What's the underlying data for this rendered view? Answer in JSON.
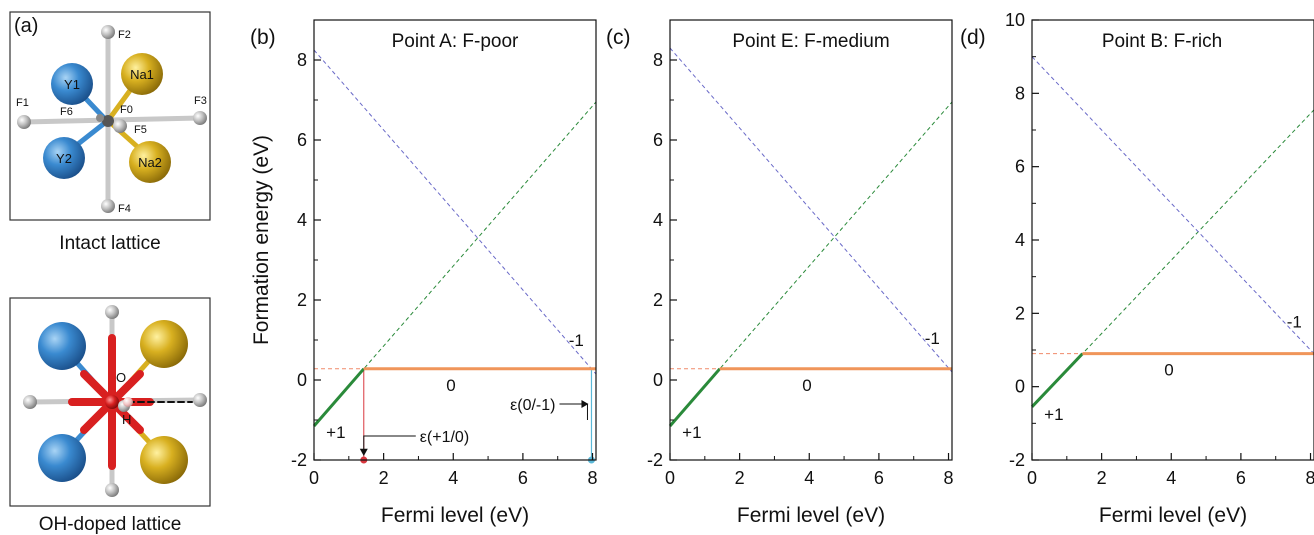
{
  "panel_a": {
    "label": "(a)",
    "intact": {
      "caption": "Intact lattice",
      "atoms": [
        "Y1",
        "Y2",
        "Na1",
        "Na2",
        "F0",
        "F1",
        "F2",
        "F3",
        "F4",
        "F5",
        "F6"
      ]
    },
    "doped": {
      "caption": "OH-doped lattice",
      "atoms": [
        "O",
        "H"
      ]
    }
  },
  "colors": {
    "plus1": "#2a8a3a",
    "zero": "#f0955a",
    "minus1": "#6a6ac8",
    "ref_line": "#f08a6a",
    "eps_plus": "#d9363e",
    "eps_minus": "#5ab8d8",
    "Y": "#3a8ad0",
    "Na": "#d8b020",
    "F": "#b8b8b8",
    "O": "#d82020",
    "H": "#f0c0c0"
  },
  "chart_data": [
    {
      "type": "line",
      "panel": "(b)",
      "title": "Point A: F-poor",
      "xlabel": "Fermi level (eV)",
      "ylabel": "Formation energy (eV)",
      "xlim": [
        0,
        8.1
      ],
      "ylim": [
        -2,
        9
      ],
      "xticks": [
        0,
        2,
        4,
        6,
        8
      ],
      "yticks": [
        -2,
        0,
        2,
        4,
        6,
        8
      ],
      "series": [
        {
          "charge": "+1",
          "label": "+1",
          "x": [
            0,
            8.1
          ],
          "y": [
            -1.15,
            6.95
          ]
        },
        {
          "charge": "0",
          "label": "0",
          "x": [
            0,
            8.1
          ],
          "y": [
            0.28,
            0.28
          ]
        },
        {
          "charge": "-1",
          "label": "-1",
          "x": [
            0,
            8.1
          ],
          "y": [
            8.25,
            0.15
          ]
        }
      ],
      "transitions": [
        {
          "label": "ε(+1/0)",
          "x": 1.43
        },
        {
          "label": "ε(0/-1)",
          "x": 7.97
        }
      ]
    },
    {
      "type": "line",
      "panel": "(c)",
      "title": "Point E: F-medium",
      "xlabel": "Fermi level (eV)",
      "xlim": [
        0,
        8.1
      ],
      "ylim": [
        -2,
        9
      ],
      "xticks": [
        0,
        2,
        4,
        6,
        8
      ],
      "yticks": [
        -2,
        0,
        2,
        4,
        6,
        8
      ],
      "series": [
        {
          "charge": "+1",
          "label": "+1",
          "x": [
            0,
            8.1
          ],
          "y": [
            -1.15,
            6.95
          ]
        },
        {
          "charge": "0",
          "label": "0",
          "x": [
            0,
            8.1
          ],
          "y": [
            0.28,
            0.28
          ]
        },
        {
          "charge": "-1",
          "label": "-1",
          "x": [
            0,
            8.1
          ],
          "y": [
            8.3,
            0.2
          ]
        }
      ]
    },
    {
      "type": "line",
      "panel": "(d)",
      "title": "Point B: F-rich",
      "xlabel": "Fermi level (eV)",
      "xlim": [
        0,
        8.1
      ],
      "ylim": [
        -2,
        10
      ],
      "xticks": [
        0,
        2,
        4,
        6,
        8
      ],
      "yticks": [
        -2,
        0,
        2,
        4,
        6,
        8,
        10
      ],
      "series": [
        {
          "charge": "+1",
          "label": "+1",
          "x": [
            0,
            8.1
          ],
          "y": [
            -0.55,
            7.55
          ]
        },
        {
          "charge": "0",
          "label": "0",
          "x": [
            0,
            8.1
          ],
          "y": [
            0.9,
            0.9
          ]
        },
        {
          "charge": "-1",
          "label": "-1",
          "x": [
            0,
            8.1
          ],
          "y": [
            9.0,
            0.9
          ]
        }
      ]
    }
  ]
}
